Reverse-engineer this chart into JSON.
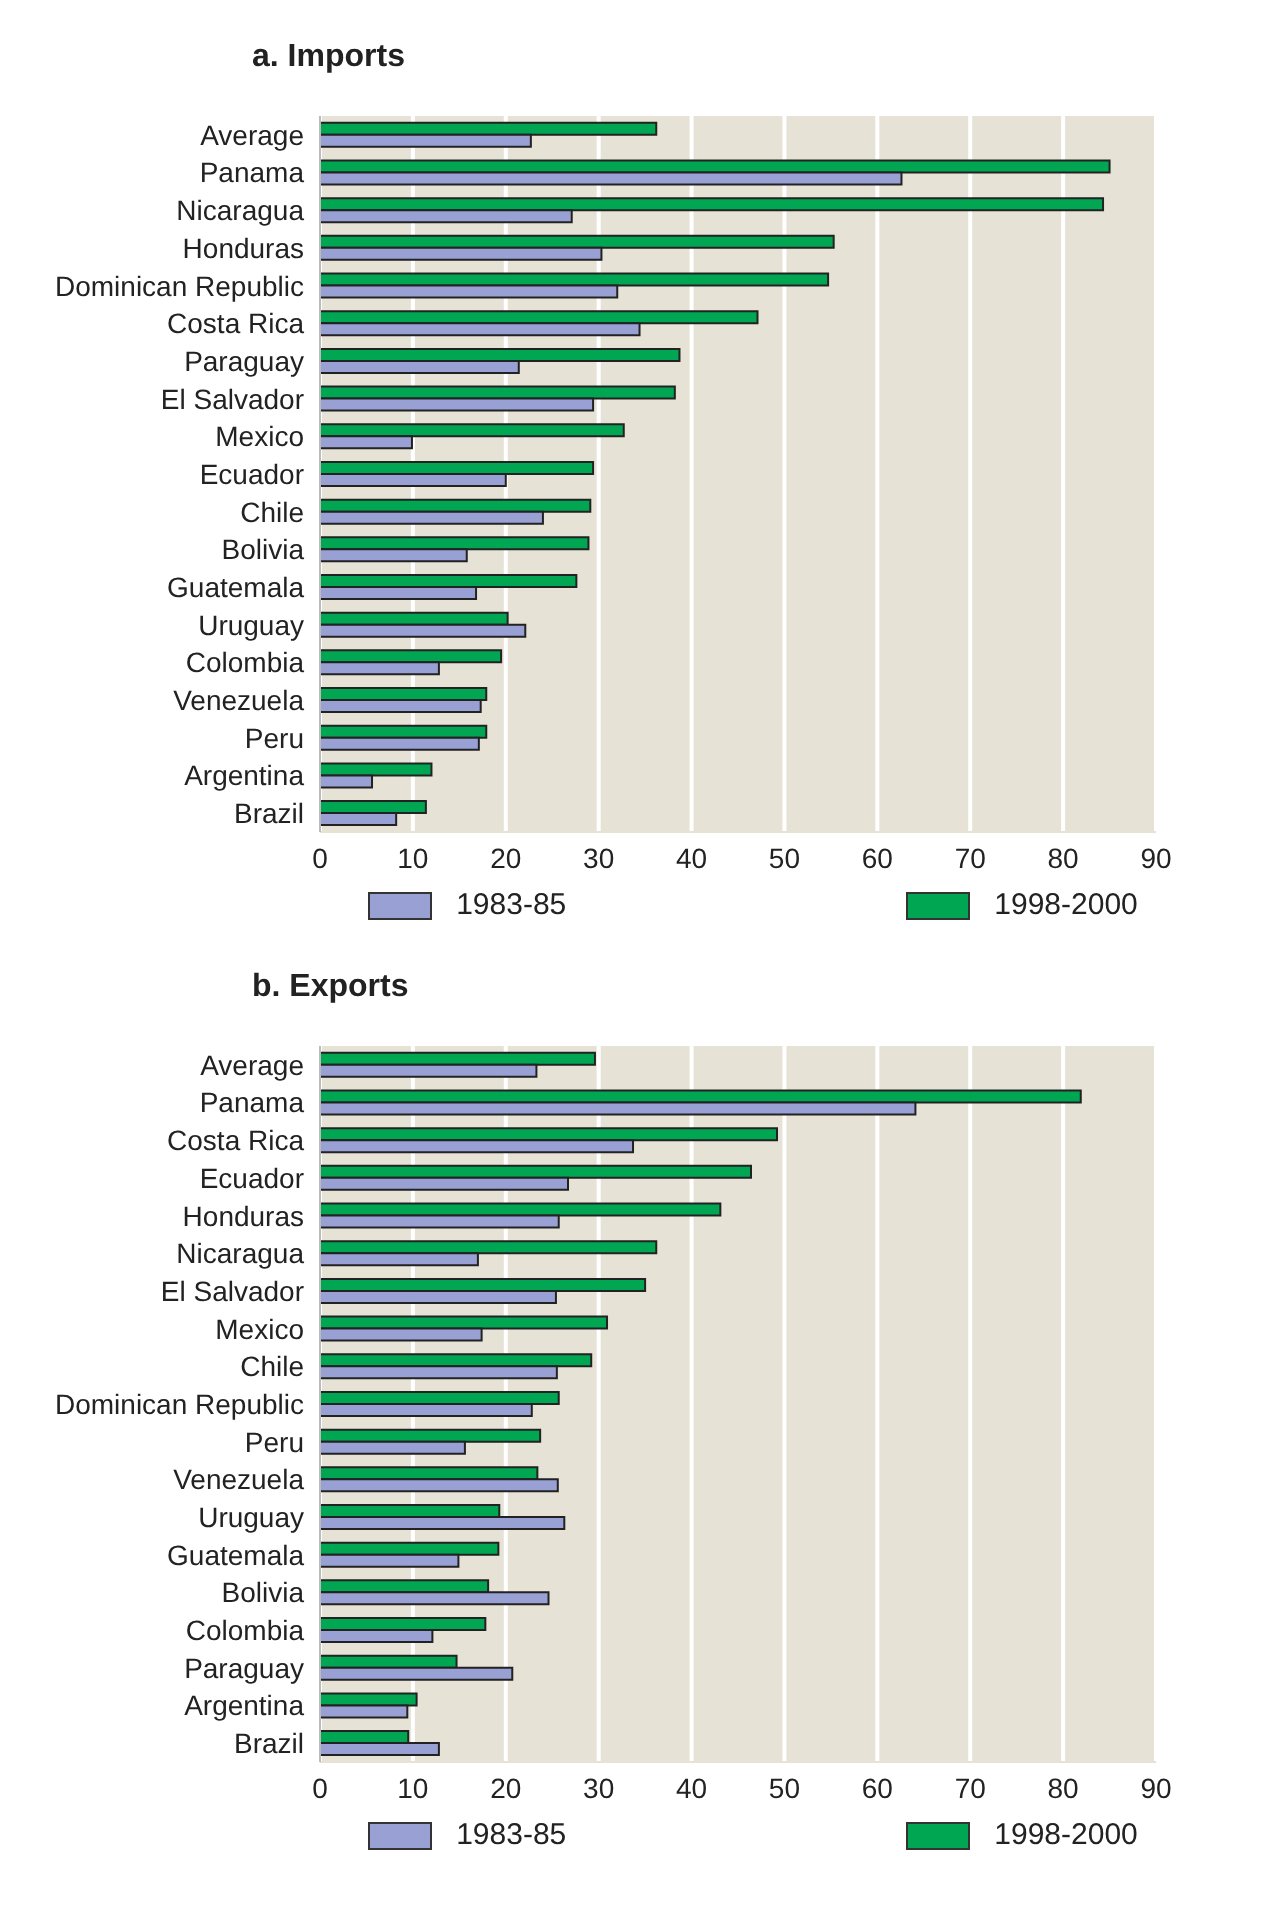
{
  "chart_data": [
    {
      "type": "bar",
      "orientation": "horizontal",
      "title": "a. Imports",
      "categories": [
        "Average",
        "Panama",
        "Nicaragua",
        "Honduras",
        "Dominican Republic",
        "Costa Rica",
        "Paraguay",
        "El Salvador",
        "Mexico",
        "Ecuador",
        "Chile",
        "Bolivia",
        "Guatemala",
        "Uruguay",
        "Colombia",
        "Venezuela",
        "Peru",
        "Argentina",
        "Brazil"
      ],
      "series": [
        {
          "name": "1983-85",
          "color": "#98a0d4",
          "values": [
            22.7,
            62.6,
            27.1,
            30.3,
            32.0,
            34.4,
            21.4,
            29.4,
            9.9,
            20.0,
            24.0,
            15.8,
            16.8,
            22.1,
            12.8,
            17.3,
            17.1,
            5.6,
            8.2
          ]
        },
        {
          "name": "1998-2000",
          "color": "#00a651",
          "values": [
            36.2,
            85.0,
            84.3,
            55.3,
            54.7,
            47.1,
            38.7,
            38.2,
            32.7,
            29.4,
            29.1,
            28.9,
            27.6,
            20.2,
            19.5,
            17.9,
            17.9,
            12.0,
            11.4
          ]
        }
      ],
      "xlim": [
        0,
        90
      ],
      "xticks": [
        0,
        10,
        20,
        30,
        40,
        50,
        60,
        70,
        80,
        90
      ],
      "grid": "x",
      "legend": "bottom"
    },
    {
      "type": "bar",
      "orientation": "horizontal",
      "title": "b. Exports",
      "categories": [
        "Average",
        "Panama",
        "Costa Rica",
        "Ecuador",
        "Honduras",
        "Nicaragua",
        "El Salvador",
        "Mexico",
        "Chile",
        "Dominican Republic",
        "Peru",
        "Venezuela",
        "Uruguay",
        "Guatemala",
        "Bolivia",
        "Colombia",
        "Paraguay",
        "Argentina",
        "Brazil"
      ],
      "series": [
        {
          "name": "1983-85",
          "color": "#98a0d4",
          "values": [
            23.3,
            64.1,
            33.7,
            26.7,
            25.7,
            17.0,
            25.4,
            17.4,
            25.5,
            22.8,
            15.6,
            25.6,
            26.3,
            14.9,
            24.6,
            12.1,
            20.7,
            9.4,
            12.8
          ]
        },
        {
          "name": "1998-2000",
          "color": "#00a651",
          "values": [
            29.6,
            81.9,
            49.2,
            46.4,
            43.1,
            36.2,
            35.0,
            30.9,
            29.2,
            25.7,
            23.7,
            23.4,
            19.3,
            19.2,
            18.1,
            17.8,
            14.7,
            10.4,
            9.5
          ]
        }
      ],
      "xlim": [
        0,
        90
      ],
      "xticks": [
        0,
        10,
        20,
        30,
        40,
        50,
        60,
        70,
        80,
        90
      ],
      "grid": "x",
      "legend": "bottom"
    }
  ]
}
